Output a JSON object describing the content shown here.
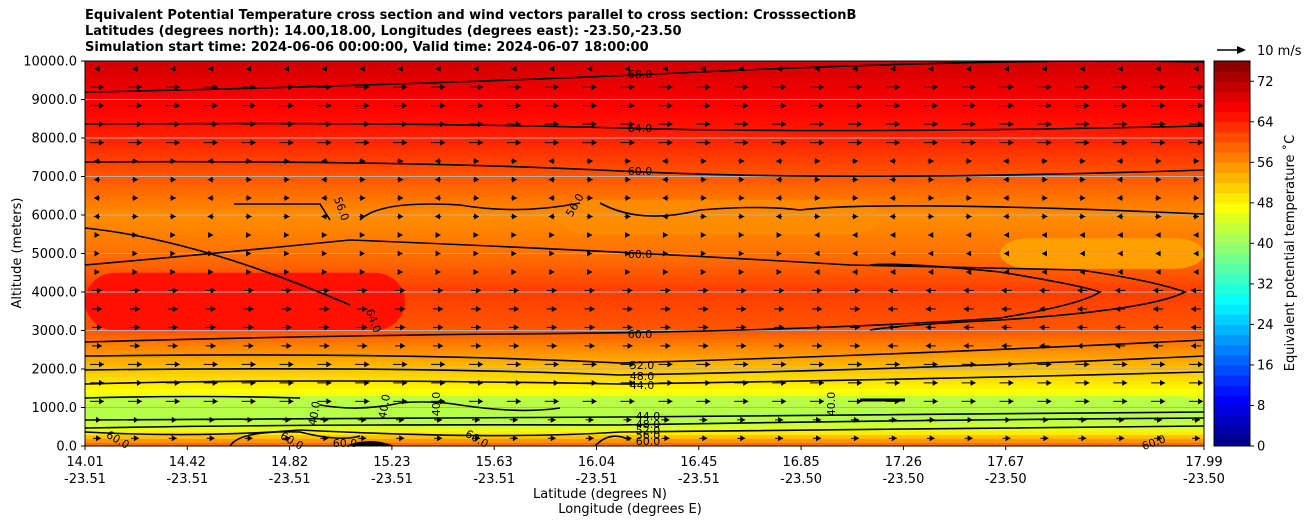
{
  "title_lines": [
    "Equivalent Potential Temperature cross section and wind vectors parallel to cross section: CrosssectionB",
    "Latitudes (degrees north): 14.00,18.00, Longitudes (degrees east): -23.50,-23.50",
    "Simulation start time: 2024-06-06 00:00:00, Valid time: 2024-06-07 18:00:00"
  ],
  "chart_data": {
    "type": "heatmap",
    "subtype": "filled-contour cross section with wind vectors",
    "ylabel": "Altitude (meters)",
    "xlabel_lat": "Latitude (degrees N)",
    "xlabel_lon": "Longitude (degrees E)",
    "ylim": [
      0,
      10000
    ],
    "y_ticks": [
      "0.0",
      "1000.0",
      "2000.0",
      "3000.0",
      "4000.0",
      "5000.0",
      "6000.0",
      "7000.0",
      "8000.0",
      "9000.0",
      "10000.0"
    ],
    "y_tick_values": [
      0,
      1000,
      2000,
      3000,
      4000,
      5000,
      6000,
      7000,
      8000,
      9000,
      10000
    ],
    "x_ticks": [
      {
        "lat": "14.01",
        "lon": "-23.51"
      },
      {
        "lat": "14.42",
        "lon": "-23.51"
      },
      {
        "lat": "14.82",
        "lon": "-23.51"
      },
      {
        "lat": "15.23",
        "lon": "-23.51"
      },
      {
        "lat": "15.63",
        "lon": "-23.51"
      },
      {
        "lat": "16.04",
        "lon": "-23.51"
      },
      {
        "lat": "16.45",
        "lon": "-23.51"
      },
      {
        "lat": "16.85",
        "lon": "-23.50"
      },
      {
        "lat": "17.26",
        "lon": "-23.50"
      },
      {
        "lat": "17.67",
        "lon": "-23.50"
      },
      {
        "lat": "17.99",
        "lon": "-23.50"
      }
    ],
    "colorbar": {
      "label": "Equivalent potential temperature $^\\circ$C",
      "label_display": "Equivalent potential temperature ˚C",
      "range": [
        0,
        76
      ],
      "tick_labels": [
        "0",
        "8",
        "16",
        "24",
        "32",
        "40",
        "48",
        "56",
        "64",
        "72"
      ],
      "tick_values": [
        0,
        8,
        16,
        24,
        32,
        40,
        48,
        56,
        64,
        72
      ]
    },
    "quiver_key": "10 m/s",
    "contour_labels": [
      "68.0",
      "64.0",
      "60.0",
      "56.0",
      "56.0",
      "60.0",
      "64.0",
      "60.0",
      "52.0",
      "48.0",
      "44.0",
      "44.0",
      "48.0",
      "52.0",
      "56.0",
      "60.0",
      "40.0",
      "40.0",
      "40.0",
      "40.0",
      "60.0",
      "60.0",
      "60.0",
      "60.0",
      "60.0"
    ],
    "approx_profile": [
      {
        "altitude": 0,
        "theta_e": 60
      },
      {
        "altitude": 500,
        "theta_e": 44
      },
      {
        "altitude": 1000,
        "theta_e": 42
      },
      {
        "altitude": 1500,
        "theta_e": 48
      },
      {
        "altitude": 2000,
        "theta_e": 52
      },
      {
        "altitude": 3000,
        "theta_e": 60
      },
      {
        "altitude": 4000,
        "theta_e": 62
      },
      {
        "altitude": 5000,
        "theta_e": 58
      },
      {
        "altitude": 6000,
        "theta_e": 56
      },
      {
        "altitude": 7000,
        "theta_e": 60
      },
      {
        "altitude": 8000,
        "theta_e": 64
      },
      {
        "altitude": 9000,
        "theta_e": 67
      },
      {
        "altitude": 10000,
        "theta_e": 70
      }
    ]
  }
}
